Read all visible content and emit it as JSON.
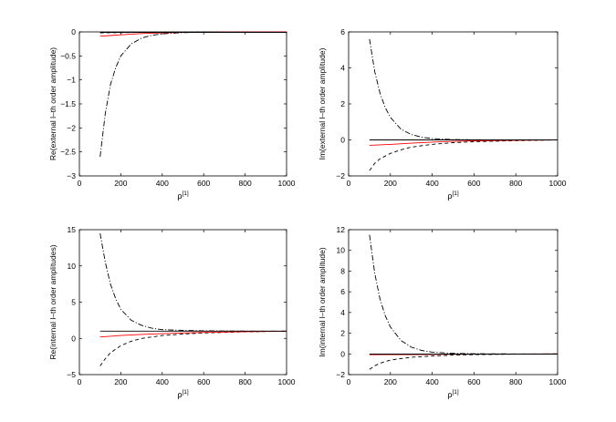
{
  "chart_data": [
    {
      "type": "line",
      "ylabel": "Re(external l–th order amplitude)",
      "xlabel_base": "ρ",
      "xlabel_sup": "[1]",
      "xlim": [
        0,
        1000
      ],
      "ylim": [
        -3,
        0
      ],
      "xticks": [
        0,
        200,
        400,
        600,
        800,
        1000
      ],
      "yticks": [
        -3,
        -2.5,
        -2,
        -1.5,
        -1,
        -0.5,
        0
      ],
      "ytick_labels": [
        "−3",
        "−2.5",
        "−2",
        "−1.5",
        "−1",
        "−0.5",
        "0"
      ],
      "series": [
        {
          "color": "#000000",
          "style": "dashdot",
          "x": [
            100,
            125,
            150,
            175,
            200,
            250,
            300,
            350,
            400,
            500,
            600,
            700,
            800,
            900,
            1000
          ],
          "y": [
            -2.6,
            -1.7,
            -1.1,
            -0.75,
            -0.5,
            -0.25,
            -0.13,
            -0.07,
            -0.04,
            -0.015,
            -0.006,
            -0.003,
            -0.001,
            0,
            0
          ]
        },
        {
          "color": "#000000",
          "style": "dashed",
          "x": [
            100,
            150,
            200,
            300,
            400,
            500,
            600,
            800,
            1000
          ],
          "y": [
            -0.02,
            -0.018,
            -0.015,
            -0.01,
            -0.006,
            -0.004,
            -0.002,
            -0.001,
            0
          ]
        },
        {
          "color": "#ff0000",
          "style": "solid",
          "x": [
            100,
            150,
            200,
            300,
            400,
            500,
            600,
            800,
            1000
          ],
          "y": [
            -0.09,
            -0.075,
            -0.06,
            -0.035,
            -0.02,
            -0.012,
            -0.007,
            -0.003,
            -0.001
          ]
        },
        {
          "color": "#000000",
          "style": "solid",
          "x": [
            100,
            1000
          ],
          "y": [
            -0.01,
            -0.01
          ]
        }
      ]
    },
    {
      "type": "line",
      "ylabel": "Im(external l–th order amplitude)",
      "xlabel_base": "ρ",
      "xlabel_sup": "[1]",
      "xlim": [
        0,
        1000
      ],
      "ylim": [
        -2,
        6
      ],
      "xticks": [
        0,
        200,
        400,
        600,
        800,
        1000
      ],
      "yticks": [
        -2,
        0,
        2,
        4,
        6
      ],
      "ytick_labels": [
        "−2",
        "0",
        "2",
        "4",
        "6"
      ],
      "series": [
        {
          "color": "#000000",
          "style": "dashdot",
          "x": [
            100,
            125,
            150,
            175,
            200,
            250,
            300,
            350,
            400,
            500,
            600,
            700,
            800,
            1000
          ],
          "y": [
            5.6,
            3.8,
            2.6,
            1.8,
            1.25,
            0.6,
            0.3,
            0.15,
            0.07,
            0.02,
            0.01,
            0,
            0,
            0
          ]
        },
        {
          "color": "#000000",
          "style": "dashed",
          "x": [
            100,
            125,
            150,
            200,
            250,
            300,
            400,
            500,
            600,
            800,
            1000
          ],
          "y": [
            -1.7,
            -1.3,
            -1.05,
            -0.75,
            -0.55,
            -0.4,
            -0.25,
            -0.15,
            -0.1,
            -0.04,
            0
          ]
        },
        {
          "color": "#ff0000",
          "style": "solid",
          "x": [
            100,
            200,
            300,
            400,
            500,
            600,
            800,
            1000
          ],
          "y": [
            -0.3,
            -0.25,
            -0.18,
            -0.12,
            -0.08,
            -0.05,
            -0.02,
            0
          ]
        },
        {
          "color": "#000000",
          "style": "solid",
          "x": [
            100,
            1000
          ],
          "y": [
            0,
            0
          ]
        }
      ]
    },
    {
      "type": "line",
      "ylabel": "Re(internal l–th order amplitudes)",
      "xlabel_base": "ρ",
      "xlabel_sup": "[1]",
      "xlim": [
        0,
        1000
      ],
      "ylim": [
        -5,
        15
      ],
      "xticks": [
        0,
        200,
        400,
        600,
        800,
        1000
      ],
      "yticks": [
        -5,
        0,
        5,
        10,
        15
      ],
      "ytick_labels": [
        "−5",
        "0",
        "5",
        "10",
        "15"
      ],
      "series": [
        {
          "color": "#000000",
          "style": "dashdot",
          "x": [
            100,
            125,
            150,
            175,
            200,
            250,
            300,
            350,
            400,
            500,
            600,
            800,
            1000
          ],
          "y": [
            14.5,
            10.5,
            7.5,
            5.5,
            4.0,
            2.5,
            1.8,
            1.4,
            1.2,
            1.1,
            1.05,
            1.0,
            1.0
          ]
        },
        {
          "color": "#000000",
          "style": "dashed",
          "x": [
            100,
            125,
            150,
            200,
            250,
            300,
            400,
            500,
            600,
            800,
            1000
          ],
          "y": [
            -3.8,
            -2.8,
            -2.0,
            -1.0,
            -0.4,
            0.0,
            0.4,
            0.6,
            0.75,
            0.9,
            1.0
          ]
        },
        {
          "color": "#ff0000",
          "style": "solid",
          "x": [
            100,
            200,
            300,
            400,
            500,
            600,
            800,
            1000
          ],
          "y": [
            0.2,
            0.4,
            0.55,
            0.65,
            0.75,
            0.82,
            0.92,
            1.0
          ]
        },
        {
          "color": "#000000",
          "style": "solid",
          "x": [
            100,
            1000
          ],
          "y": [
            1.0,
            1.0
          ]
        }
      ]
    },
    {
      "type": "line",
      "ylabel": "Im(internal l–th order amplitude)",
      "xlabel_base": "ρ",
      "xlabel_sup": "[1]",
      "xlim": [
        0,
        1000
      ],
      "ylim": [
        -2,
        12
      ],
      "xticks": [
        0,
        200,
        400,
        600,
        800,
        1000
      ],
      "yticks": [
        -2,
        0,
        2,
        4,
        6,
        8,
        10,
        12
      ],
      "ytick_labels": [
        "−2",
        "0",
        "2",
        "4",
        "6",
        "8",
        "10",
        "12"
      ],
      "series": [
        {
          "color": "#000000",
          "style": "dashdot",
          "x": [
            100,
            125,
            150,
            175,
            200,
            250,
            300,
            350,
            400,
            500,
            600,
            700,
            800,
            1000
          ],
          "y": [
            11.5,
            7.8,
            5.3,
            3.7,
            2.6,
            1.3,
            0.65,
            0.33,
            0.17,
            0.05,
            0.02,
            0.01,
            0,
            0
          ]
        },
        {
          "color": "#000000",
          "style": "dashed",
          "x": [
            100,
            125,
            150,
            200,
            250,
            300,
            400,
            500,
            600,
            800,
            1000
          ],
          "y": [
            -1.5,
            -1.15,
            -0.9,
            -0.6,
            -0.45,
            -0.33,
            -0.2,
            -0.12,
            -0.07,
            -0.03,
            0
          ]
        },
        {
          "color": "#ff0000",
          "style": "solid",
          "x": [
            100,
            200,
            300,
            400,
            500,
            600,
            800,
            1000
          ],
          "y": [
            -0.08,
            -0.07,
            -0.06,
            -0.05,
            -0.04,
            -0.03,
            -0.015,
            0
          ]
        },
        {
          "color": "#000000",
          "style": "solid",
          "x": [
            100,
            1000
          ],
          "y": [
            -0.02,
            -0.02
          ]
        }
      ]
    }
  ]
}
